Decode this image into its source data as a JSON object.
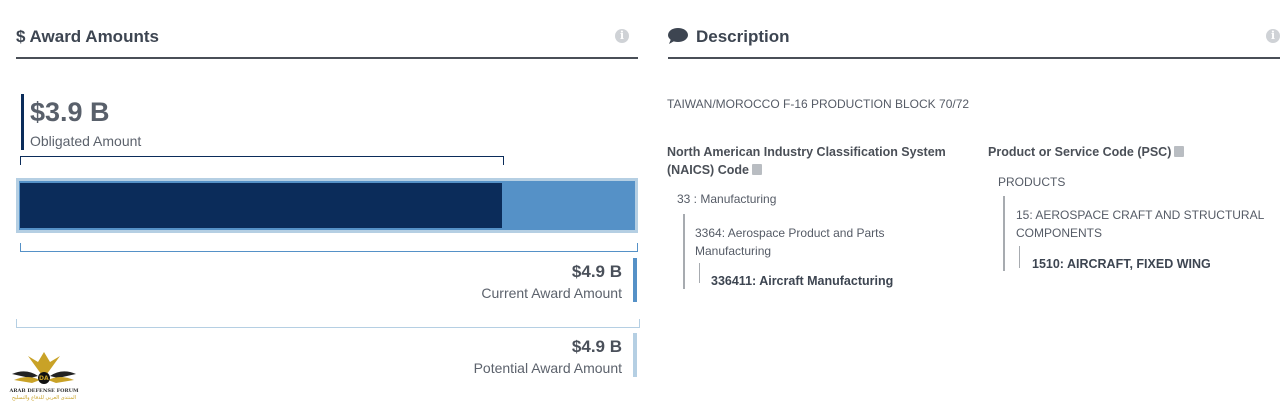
{
  "award": {
    "title": "$ Award Amounts",
    "obligated": {
      "value": "$3.9 B",
      "label": "Obligated Amount",
      "fraction": 0.785
    },
    "current": {
      "value": "$4.9 B",
      "label": "Current Award Amount"
    },
    "potential": {
      "value": "$4.9 B",
      "label": "Potential Award Amount"
    },
    "colors": {
      "obligated": "#0b2c5a",
      "current": "#5591c7",
      "potential": "#b5cfe3",
      "rule": "#4a4f57"
    }
  },
  "description": {
    "title": "Description",
    "text": "TAIWAN/MOROCCO F-16 PRODUCTION BLOCK 70/72",
    "naics": {
      "header_line1": "North American Industry Classification System",
      "header_line2": "(NAICS) Code",
      "level1": "33 : Manufacturing",
      "level2_line1": "3364: Aerospace Product and Parts",
      "level2_line2": "Manufacturing",
      "level3": "336411: Aircraft Manufacturing"
    },
    "psc": {
      "header": "Product or Service Code (PSC)",
      "level1": "PRODUCTS",
      "level2_line1": "15: AEROSPACE CRAFT AND STRUCTURAL",
      "level2_line2": "COMPONENTS",
      "level3": "1510: AIRCRAFT, FIXED WING"
    }
  },
  "watermark": {
    "line1": "ARAB DEFENSE FORUM",
    "line2": "المنتدى العربي للدفاع والتسليح",
    "badge": "DA"
  }
}
